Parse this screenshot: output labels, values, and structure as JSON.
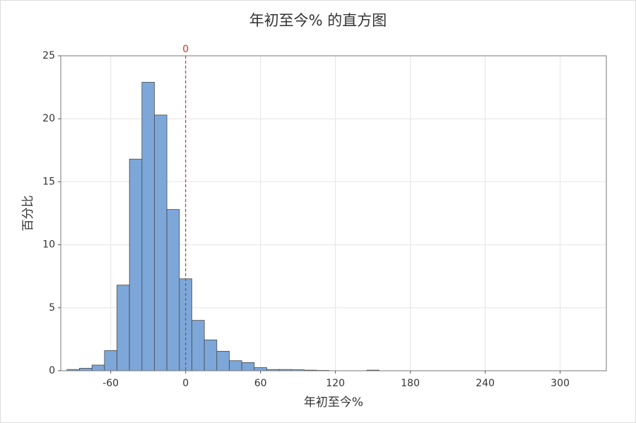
{
  "chart_data": {
    "type": "histogram",
    "title": "年初至今% 的直方图",
    "xlabel": "年初至今%",
    "ylabel": "百分比",
    "bins": [
      -95,
      -85,
      -75,
      -65,
      -55,
      -45,
      -35,
      -25,
      -15,
      -5,
      5,
      15,
      25,
      35,
      45,
      55,
      65,
      75,
      85,
      95,
      105,
      115,
      125,
      135,
      145,
      155
    ],
    "counts": [
      0.1,
      0.2,
      0.45,
      1.6,
      6.8,
      16.8,
      22.9,
      20.3,
      12.8,
      7.3,
      4.0,
      2.45,
      1.55,
      0.8,
      0.65,
      0.25,
      0.1,
      0.1,
      0.08,
      0.05,
      0.03,
      0,
      0,
      0,
      0.05
    ],
    "color": "#7da7d9",
    "xlim": [
      -100,
      337
    ],
    "ylim": [
      0,
      25
    ],
    "xticks": [
      -60,
      0,
      60,
      120,
      180,
      240,
      300
    ],
    "yticks": [
      0,
      5,
      10,
      15,
      20,
      25
    ],
    "grid": true,
    "reference_lines": [
      {
        "value": 0,
        "color": "#c0392b"
      }
    ]
  }
}
